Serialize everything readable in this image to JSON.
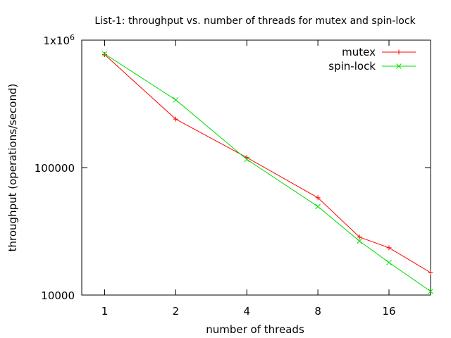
{
  "chart_data": {
    "type": "line",
    "title": "List-1: throughput vs. number of threads for mutex and spin-lock",
    "xlabel": "number of threads",
    "ylabel": "throughput (operations/second)",
    "x_scale": "log2",
    "y_scale": "log10",
    "xlim": [
      0.8,
      24
    ],
    "ylim": [
      10000,
      1000000
    ],
    "x_ticks": [
      1,
      2,
      4,
      8,
      16
    ],
    "x_tick_labels": [
      "1",
      "2",
      "4",
      "8",
      "16"
    ],
    "y_ticks": [
      10000,
      100000,
      1000000
    ],
    "y_tick_labels": [
      "10000",
      "100000",
      "1x10"
    ],
    "y_tick_superscript": "6",
    "grid": false,
    "legend_position": "top-right",
    "series": [
      {
        "name": "mutex",
        "color": "#ff0000",
        "marker": "plus",
        "x": [
          1,
          2,
          4,
          8,
          12,
          16,
          24
        ],
        "y": [
          770000,
          240000,
          120000,
          58000,
          28500,
          23500,
          15000
        ]
      },
      {
        "name": "spin-lock",
        "color": "#00dd00",
        "marker": "cross",
        "x": [
          1,
          2,
          4,
          8,
          12,
          16,
          24
        ],
        "y": [
          780000,
          340000,
          116000,
          49500,
          26500,
          18000,
          10700
        ]
      }
    ]
  }
}
